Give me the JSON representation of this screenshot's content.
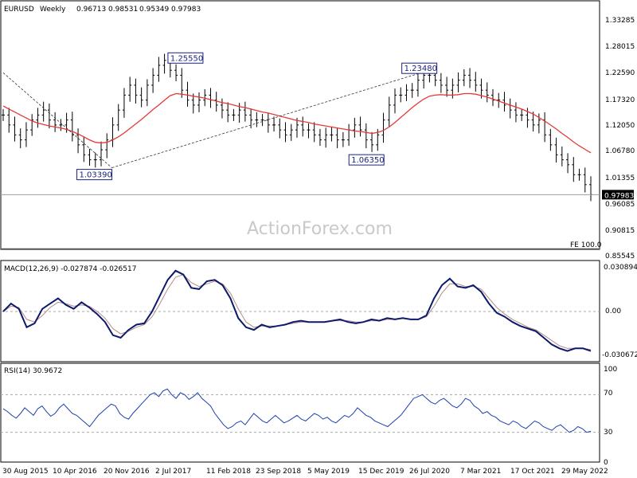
{
  "chart_data": {
    "type": "line",
    "symbol": "EURUSD",
    "timeframe": "Weekly",
    "ohlc_last": [
      "0.96713",
      "0.98531",
      "0.95349",
      "0.97983"
    ],
    "watermark": "ActionForex.com",
    "price_panel": {
      "y_ticks": [
        "1.33285",
        "1.28015",
        "1.22590",
        "1.17320",
        "1.12050",
        "1.06780",
        "1.01355",
        "0.96085",
        "0.90815",
        "0.85545"
      ],
      "ylim": [
        0.85545,
        1.33285
      ],
      "last_price_label": "0.97983",
      "last_price": 0.97983,
      "fe_label": "FE 100.0",
      "annotations": [
        {
          "label": "1.03390",
          "value": 1.0339,
          "t": 0.185
        },
        {
          "label": "1.25550",
          "value": 1.2555,
          "t": 0.34
        },
        {
          "label": "1.06350",
          "value": 1.0635,
          "t": 0.648
        },
        {
          "label": "1.23480",
          "value": 1.2348,
          "t": 0.738
        }
      ],
      "closes": [
        1.14,
        1.12,
        1.1,
        1.09,
        1.11,
        1.13,
        1.14,
        1.15,
        1.13,
        1.12,
        1.12,
        1.13,
        1.1,
        1.08,
        1.06,
        1.05,
        1.05,
        1.07,
        1.09,
        1.12,
        1.15,
        1.18,
        1.2,
        1.18,
        1.17,
        1.2,
        1.22,
        1.24,
        1.25,
        1.23,
        1.22,
        1.19,
        1.17,
        1.16,
        1.17,
        1.18,
        1.17,
        1.16,
        1.15,
        1.14,
        1.14,
        1.15,
        1.14,
        1.13,
        1.13,
        1.13,
        1.12,
        1.12,
        1.11,
        1.1,
        1.11,
        1.12,
        1.11,
        1.11,
        1.1,
        1.09,
        1.1,
        1.1,
        1.09,
        1.09,
        1.11,
        1.12,
        1.11,
        1.09,
        1.08,
        1.1,
        1.13,
        1.16,
        1.18,
        1.18,
        1.19,
        1.19,
        1.21,
        1.22,
        1.22,
        1.21,
        1.2,
        1.19,
        1.2,
        1.21,
        1.22,
        1.21,
        1.2,
        1.19,
        1.18,
        1.17,
        1.17,
        1.16,
        1.15,
        1.14,
        1.14,
        1.13,
        1.12,
        1.13,
        1.1,
        1.08,
        1.06,
        1.05,
        1.04,
        1.02,
        1.02,
        1.0,
        0.98
      ],
      "ma": [
        1.158,
        1.152,
        1.146,
        1.14,
        1.134,
        1.128,
        1.124,
        1.121,
        1.118,
        1.116,
        1.114,
        1.111,
        1.107,
        1.102,
        1.096,
        1.09,
        1.085,
        1.084,
        1.085,
        1.09,
        1.096,
        1.104,
        1.113,
        1.122,
        1.131,
        1.141,
        1.151,
        1.16,
        1.17,
        1.179,
        1.183,
        1.182,
        1.18,
        1.178,
        1.176,
        1.174,
        1.171,
        1.168,
        1.165,
        1.163,
        1.16,
        1.157,
        1.155,
        1.152,
        1.149,
        1.146,
        1.144,
        1.141,
        1.138,
        1.135,
        1.132,
        1.129,
        1.127,
        1.125,
        1.122,
        1.12,
        1.118,
        1.116,
        1.114,
        1.112,
        1.11,
        1.108,
        1.107,
        1.105,
        1.103,
        1.105,
        1.109,
        1.116,
        1.125,
        1.135,
        1.145,
        1.155,
        1.164,
        1.172,
        1.178,
        1.18,
        1.181,
        1.18,
        1.18,
        1.181,
        1.183,
        1.183,
        1.182,
        1.179,
        1.176,
        1.172,
        1.168,
        1.164,
        1.16,
        1.156,
        1.152,
        1.147,
        1.142,
        1.135,
        1.128,
        1.12,
        1.112,
        1.103,
        1.095,
        1.086,
        1.078,
        1.071,
        1.064
      ],
      "trend_lines": [
        {
          "t": [
            0.0,
            0.185
          ],
          "v": [
            1.225,
            1.0339
          ]
        },
        {
          "t": [
            0.185,
            0.738
          ],
          "v": [
            1.0339,
            1.2348
          ]
        }
      ]
    },
    "macd_panel": {
      "label": "MACD(12,26,9) -0.027874 -0.026517",
      "y_ticks": [
        "0.030894",
        "0.00",
        "-0.030672"
      ],
      "ylim": [
        -0.0345,
        0.0345
      ],
      "main": [
        0.0,
        0.006,
        0.002,
        -0.012,
        -0.009,
        0.002,
        0.006,
        0.01,
        0.005,
        0.002,
        0.007,
        0.003,
        -0.002,
        -0.008,
        -0.018,
        -0.02,
        -0.014,
        -0.01,
        -0.009,
        0.0,
        0.012,
        0.024,
        0.031,
        0.028,
        0.018,
        0.017,
        0.023,
        0.024,
        0.02,
        0.01,
        -0.005,
        -0.012,
        -0.014,
        -0.01,
        -0.012,
        -0.011,
        -0.01,
        -0.008,
        -0.007,
        -0.008,
        -0.008,
        -0.008,
        -0.007,
        -0.006,
        -0.008,
        -0.009,
        -0.008,
        -0.006,
        -0.007,
        -0.005,
        -0.006,
        -0.005,
        -0.006,
        -0.006,
        -0.003,
        0.01,
        0.02,
        0.025,
        0.019,
        0.018,
        0.02,
        0.015,
        0.006,
        -0.001,
        -0.004,
        -0.008,
        -0.011,
        -0.013,
        -0.015,
        -0.02,
        -0.025,
        -0.028,
        -0.03,
        -0.028,
        -0.028,
        -0.03
      ],
      "signal": [
        0.0,
        0.004,
        0.003,
        -0.006,
        -0.008,
        -0.003,
        0.003,
        0.007,
        0.006,
        0.004,
        0.005,
        0.004,
        0.0,
        -0.005,
        -0.013,
        -0.017,
        -0.015,
        -0.012,
        -0.01,
        -0.004,
        0.006,
        0.017,
        0.026,
        0.028,
        0.022,
        0.019,
        0.021,
        0.023,
        0.021,
        0.014,
        0.002,
        -0.008,
        -0.012,
        -0.011,
        -0.011,
        -0.011,
        -0.01,
        -0.009,
        -0.008,
        -0.008,
        -0.008,
        -0.008,
        -0.007,
        -0.007,
        -0.007,
        -0.008,
        -0.008,
        -0.007,
        -0.007,
        -0.006,
        -0.006,
        -0.005,
        -0.006,
        -0.006,
        -0.004,
        0.004,
        0.014,
        0.021,
        0.021,
        0.019,
        0.019,
        0.017,
        0.01,
        0.003,
        -0.002,
        -0.006,
        -0.009,
        -0.012,
        -0.014,
        -0.018,
        -0.022,
        -0.026,
        -0.028,
        -0.028,
        -0.028,
        -0.029
      ]
    },
    "rsi_panel": {
      "label": "RSI(14) 30.9672",
      "y_ticks": [
        "100",
        "70",
        "30",
        "0"
      ],
      "ylim": [
        0,
        100
      ],
      "levels": [
        70,
        30
      ],
      "values": [
        55,
        52,
        48,
        45,
        50,
        56,
        52,
        48,
        55,
        58,
        52,
        47,
        50,
        56,
        60,
        55,
        50,
        48,
        44,
        40,
        36,
        42,
        48,
        52,
        56,
        60,
        58,
        50,
        46,
        44,
        50,
        55,
        60,
        65,
        70,
        72,
        68,
        74,
        76,
        70,
        66,
        72,
        70,
        65,
        68,
        72,
        66,
        62,
        58,
        50,
        44,
        38,
        34,
        36,
        40,
        42,
        38,
        44,
        50,
        46,
        42,
        40,
        44,
        48,
        44,
        40,
        42,
        45,
        48,
        44,
        42,
        46,
        50,
        48,
        44,
        46,
        42,
        40,
        44,
        48,
        46,
        50,
        56,
        52,
        48,
        46,
        42,
        40,
        38,
        36,
        40,
        44,
        48,
        54,
        60,
        66,
        68,
        70,
        66,
        62,
        60,
        64,
        66,
        62,
        58,
        56,
        60,
        66,
        64,
        58,
        55,
        50,
        52,
        48,
        46,
        42,
        40,
        38,
        42,
        40,
        36,
        34,
        38,
        42,
        40,
        36,
        34,
        32,
        36,
        38,
        34,
        30,
        32,
        36,
        34,
        30,
        31
      ]
    },
    "x_tick_labels": [
      "30 Aug 2015",
      "10 Apr 2016",
      "20 Nov 2016",
      "2 Jul 2017",
      "11 Feb 2018",
      "23 Sep 2018",
      "5 May 2019",
      "15 Dec 2019",
      "26 Jul 2020",
      "7 Mar 2021",
      "17 Oct 2021",
      "29 May 2022"
    ],
    "colors": {
      "candles": "#000000",
      "moving_average": "#e53935",
      "macd_main": "#0d1a6b",
      "macd_signal": "#b58a8a",
      "rsi": "#1e3fb0",
      "grid_level": "#a8a8a8",
      "annotation": "#1a237e"
    }
  }
}
